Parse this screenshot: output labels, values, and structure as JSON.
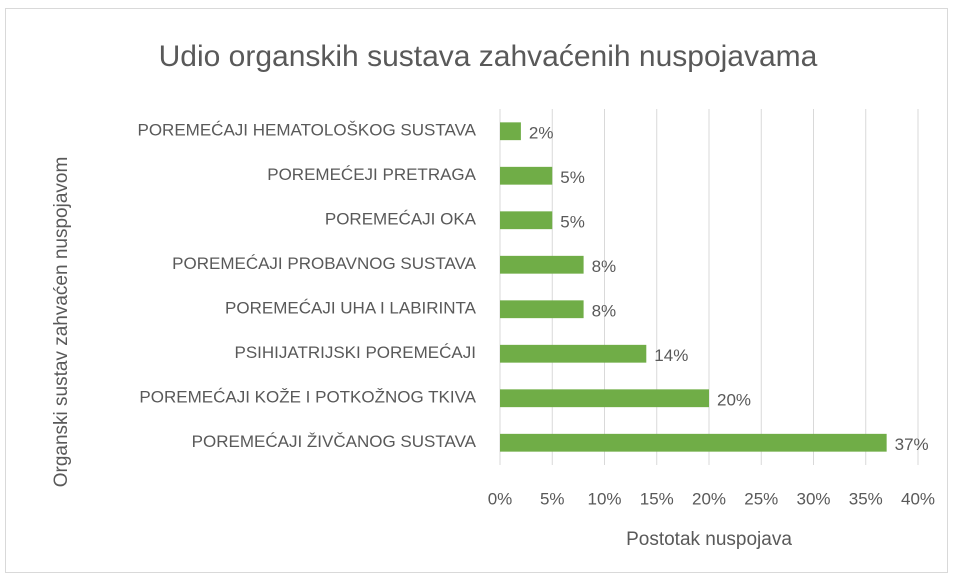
{
  "chart_data": {
    "type": "bar",
    "orientation": "horizontal",
    "title": "Udio organskih sustava zahvaćenih nuspojavama",
    "x_label": "Postotak nuspojava",
    "y_label": "Organski sustav zahvaćen nuspojavom",
    "categories": [
      "POREMEĆAJI HEMATOLOŠKOG SUSTAVA",
      "POREMEĆEJI PRETRAGA",
      "POREMEĆAJI OKA",
      "POREMEĆAJI PROBAVNOG SUSTAVA",
      "POREMEĆAJI UHA I LABIRINTA",
      "PSIHIJATRIJSKI POREMEĆAJI",
      "POREMEĆAJI KOŽE I POTKOŽNOG TKIVA",
      "POREMEĆAJI ŽIVČANOG SUSTAVA"
    ],
    "values": [
      2,
      5,
      5,
      8,
      8,
      14,
      20,
      37
    ],
    "value_labels": [
      "2%",
      "5%",
      "5%",
      "8%",
      "8%",
      "14%",
      "20%",
      "37%"
    ],
    "color": "#70ad47",
    "xlim": [
      0,
      40
    ],
    "xticks": [
      {
        "value": 0,
        "label": "0%"
      },
      {
        "value": 5,
        "label": "5%"
      },
      {
        "value": 10,
        "label": "10%"
      },
      {
        "value": 15,
        "label": "15%"
      },
      {
        "value": 20,
        "label": "20%"
      },
      {
        "value": 25,
        "label": "25%"
      },
      {
        "value": 30,
        "label": "30%"
      },
      {
        "value": 35,
        "label": "35%"
      },
      {
        "value": 40,
        "label": "40%"
      }
    ],
    "grid": true
  }
}
